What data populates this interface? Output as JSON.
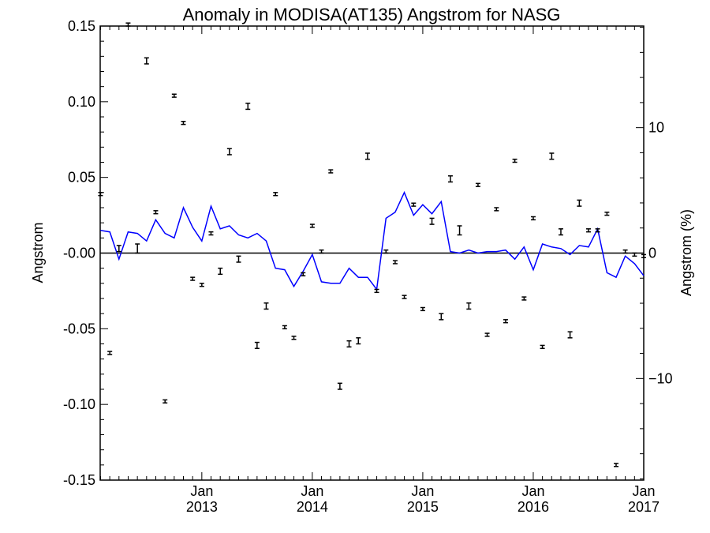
{
  "chart_data": {
    "type": "line",
    "title": "Anomaly in MODISA(AT135) Angstrom for NASG",
    "ylabel": "Angstrom",
    "ylabel_right": "Angstrom (%)",
    "xlabel": "",
    "ylim": [
      -0.15,
      0.15
    ],
    "ylim_right": [
      -18.1,
      18.1
    ],
    "xlim": [
      2012.08,
      2017.0
    ],
    "x_tick_labels": [
      {
        "x": 2013.0,
        "month": "Jan",
        "year": "2013"
      },
      {
        "x": 2014.0,
        "month": "Jan",
        "year": "2014"
      },
      {
        "x": 2015.0,
        "month": "Jan",
        "year": "2015"
      },
      {
        "x": 2016.0,
        "month": "Jan",
        "year": "2016"
      },
      {
        "x": 2017.0,
        "month": "Jan",
        "year": "2017"
      }
    ],
    "y_tick_labels": [
      "0.15",
      "0.10",
      "0.05",
      "-0.00",
      "-0.05",
      "-0.10",
      "-0.15"
    ],
    "y_tick_values": [
      0.15,
      0.1,
      0.05,
      0.0,
      -0.05,
      -0.1,
      -0.15
    ],
    "y_right_tick_labels": [
      "10",
      "0",
      "−10"
    ],
    "y_right_tick_values": [
      10,
      0,
      -10
    ],
    "zero_line": true,
    "series": [
      {
        "style": "line",
        "color": "#0000ff",
        "x": [
          2012.083,
          2012.167,
          2012.25,
          2012.333,
          2012.417,
          2012.5,
          2012.583,
          2012.667,
          2012.75,
          2012.833,
          2012.917,
          2013.0,
          2013.083,
          2013.167,
          2013.25,
          2013.333,
          2013.417,
          2013.5,
          2013.583,
          2013.667,
          2013.75,
          2013.833,
          2013.917,
          2014.0,
          2014.083,
          2014.167,
          2014.25,
          2014.333,
          2014.417,
          2014.5,
          2014.583,
          2014.667,
          2014.75,
          2014.833,
          2014.917,
          2015.0,
          2015.083,
          2015.167,
          2015.25,
          2015.333,
          2015.417,
          2015.5,
          2015.583,
          2015.667,
          2015.75,
          2015.833,
          2015.917,
          2016.0,
          2016.083,
          2016.167,
          2016.25,
          2016.333,
          2016.417,
          2016.5,
          2016.583,
          2016.667,
          2016.75,
          2016.833,
          2016.917,
          2017.0
        ],
        "values": [
          0.015,
          0.014,
          -0.004,
          0.014,
          0.013,
          0.008,
          0.022,
          0.013,
          0.01,
          0.03,
          0.017,
          0.008,
          0.031,
          0.016,
          0.018,
          0.012,
          0.01,
          0.013,
          0.008,
          -0.01,
          -0.011,
          -0.022,
          -0.012,
          -0.001,
          -0.019,
          -0.02,
          -0.02,
          -0.01,
          -0.016,
          -0.016,
          -0.024,
          0.023,
          0.027,
          0.04,
          0.025,
          0.032,
          0.026,
          0.034,
          0.001,
          0.0,
          0.002,
          0.0,
          0.001,
          0.001,
          0.002,
          -0.004,
          0.004,
          -0.011,
          0.006,
          0.004,
          0.003,
          -0.001,
          0.005,
          0.004,
          0.016,
          -0.013,
          -0.016,
          -0.002,
          -0.007,
          -0.015
        ]
      },
      {
        "style": "errorbar",
        "color": "#000000",
        "x": [
          2012.083,
          2012.167,
          2012.25,
          2012.333,
          2012.417,
          2012.5,
          2012.583,
          2012.667,
          2012.75,
          2012.833,
          2012.917,
          2013.0,
          2013.083,
          2013.167,
          2013.25,
          2013.333,
          2013.417,
          2013.5,
          2013.583,
          2013.667,
          2013.75,
          2013.833,
          2013.917,
          2014.0,
          2014.083,
          2014.167,
          2014.25,
          2014.333,
          2014.417,
          2014.5,
          2014.583,
          2014.667,
          2014.75,
          2014.833,
          2014.917,
          2015.0,
          2015.083,
          2015.167,
          2015.25,
          2015.333,
          2015.417,
          2015.5,
          2015.583,
          2015.667,
          2015.75,
          2015.833,
          2015.917,
          2016.0,
          2016.083,
          2016.167,
          2016.25,
          2016.333,
          2016.417,
          2016.5,
          2016.583,
          2016.667,
          2016.75,
          2016.833,
          2016.917,
          2017.0
        ],
        "values": [
          0.039,
          -0.066,
          0.003,
          0.151,
          0.003,
          0.127,
          0.027,
          -0.098,
          0.104,
          0.086,
          -0.017,
          -0.021,
          0.013,
          -0.012,
          0.067,
          -0.004,
          0.097,
          -0.061,
          -0.035,
          0.039,
          -0.049,
          -0.056,
          -0.014,
          0.018,
          0.001,
          0.054,
          -0.088,
          -0.06,
          -0.058,
          0.064,
          -0.025,
          0.001,
          -0.006,
          -0.029,
          0.032,
          -0.037,
          0.021,
          -0.042,
          0.049,
          0.015,
          -0.035,
          0.045,
          -0.054,
          0.029,
          -0.045,
          0.061,
          -0.03,
          0.023,
          -0.062,
          0.064,
          0.014,
          -0.054,
          0.033,
          0.015,
          0.015,
          0.026,
          -0.14,
          0.001,
          -0.001,
          -0.002
        ],
        "err": [
          0.001,
          0.001,
          0.002,
          0.001,
          0.003,
          0.002,
          0.001,
          0.001,
          0.001,
          0.001,
          0.001,
          0.001,
          0.001,
          0.002,
          0.002,
          0.002,
          0.002,
          0.002,
          0.002,
          0.001,
          0.001,
          0.001,
          0.001,
          0.001,
          0.001,
          0.001,
          0.002,
          0.002,
          0.002,
          0.002,
          0.001,
          0.001,
          0.001,
          0.001,
          0.001,
          0.001,
          0.002,
          0.002,
          0.002,
          0.003,
          0.002,
          0.001,
          0.001,
          0.001,
          0.001,
          0.001,
          0.001,
          0.001,
          0.001,
          0.002,
          0.002,
          0.002,
          0.002,
          0.001,
          0.001,
          0.001,
          0.001,
          0.001,
          0.001,
          0.001
        ]
      }
    ]
  }
}
